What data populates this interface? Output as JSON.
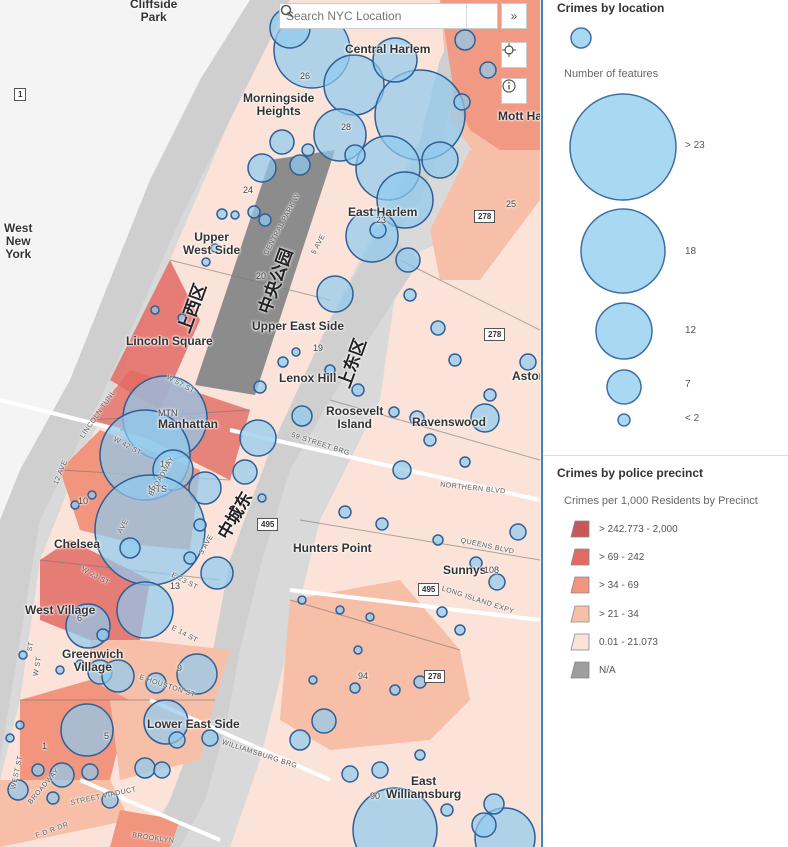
{
  "search": {
    "placeholder": "Search NYC Location"
  },
  "buttons": {
    "expand": "»",
    "locate_icon": "crosshair-icon",
    "info_icon": "info-icon",
    "search_icon": "search-icon"
  },
  "map": {
    "places": {
      "cliffside_park": "Cliffside\nPark",
      "central_harlem": "Central Harlem",
      "morningside_heights": "Morningside\nHeights",
      "mott_haven": "Mott Ha",
      "east_harlem": "East Harlem",
      "west_new_york": "West\nNew\nYork",
      "upper_west_side": "Upper\nWest Side",
      "upper_east_side": "Upper East Side",
      "lincoln_square": "Lincoln Square",
      "lenox_hill": "Lenox Hill",
      "roosevelt_island": "Roosevelt\nIsland",
      "ravenswood": "Ravenswood",
      "astoria": "Astor",
      "manhattan": "Manhattan",
      "mtn": "MTN",
      "mts": "MTS",
      "chelsea": "Chelsea",
      "hunters_point": "Hunters Point",
      "sunnyside": "Sunnys",
      "west_village": "West Village",
      "greenwich_village": "Greenwich\nVillage",
      "lower_east_side": "Lower East Side",
      "east_williamsburg": "East\nWilliamsburg"
    },
    "cjk": {
      "upper_west": "上西区",
      "central_park": "中央公园",
      "upper_east": "上东区",
      "midtown_east": "中城东"
    },
    "precinct_numbers": [
      "26",
      "28",
      "24",
      "23",
      "25",
      "20",
      "19",
      "10",
      "13",
      "6",
      "9",
      "5",
      "1",
      "94",
      "108",
      "90",
      "18"
    ],
    "roads": {
      "central_park_w": "CENTRAL PARK W",
      "fifth_ave": "5 AVE",
      "w57": "W 57 ST",
      "lincoln_tunl": "LINCOLN TUNL",
      "w42": "W 42 ST",
      "broadway": "BROADWAY",
      "third_ave": "3 AVE",
      "e23": "E 23 ST",
      "e14": "E 14 ST",
      "w23": "W 23 ST",
      "twelve_ave": "12 AVE",
      "fifty_ninth": "59 STREET BRG",
      "northern_blvd": "NORTHERN BLVD",
      "queens_blvd": "QUEENS BLVD",
      "li_expy": "LONG ISLAND EXPY",
      "e_houston": "E HOUSTON ST",
      "williamsburg_brg": "WILLIAMSBURG BRG",
      "west_st": "WEST ST",
      "broadway2": "BROADWAY",
      "fdr": "F D R DR",
      "street_viaduct": "STREET VIADUCT",
      "brooklyn": "BROOKLYN",
      "ave": "AVE",
      "w_st": "W ST",
      "st": "ST"
    },
    "shields": [
      "278",
      "278",
      "495",
      "495",
      "278",
      "1"
    ]
  },
  "legend": {
    "crimes_by_location": {
      "title": "Crimes by location",
      "subtitle": "Number of features",
      "sizes": [
        {
          "label": "> 23",
          "value": 23
        },
        {
          "label": "18",
          "value": 18
        },
        {
          "label": "12",
          "value": 12
        },
        {
          "label": "7",
          "value": 7
        },
        {
          "label": "< 2",
          "value": 2
        }
      ],
      "color": "#a9d8f2",
      "stroke": "#3d6fa4"
    },
    "crimes_by_precinct": {
      "title": "Crimes by police precinct",
      "subtitle": "Crimes per 1,000 Residents by Precinct",
      "classes": [
        {
          "label": "> 242.773 - 2,000",
          "color": "#c9575a"
        },
        {
          "label": "> 69 - 242",
          "color": "#e16a63"
        },
        {
          "label": "> 34 - 69",
          "color": "#f1957e"
        },
        {
          "label": "> 21 - 34",
          "color": "#f7bfa8"
        },
        {
          "label": "0.01 - 21.073",
          "color": "#fbe3da"
        },
        {
          "label": "N/A",
          "color": "#9e9e9e"
        }
      ]
    }
  }
}
